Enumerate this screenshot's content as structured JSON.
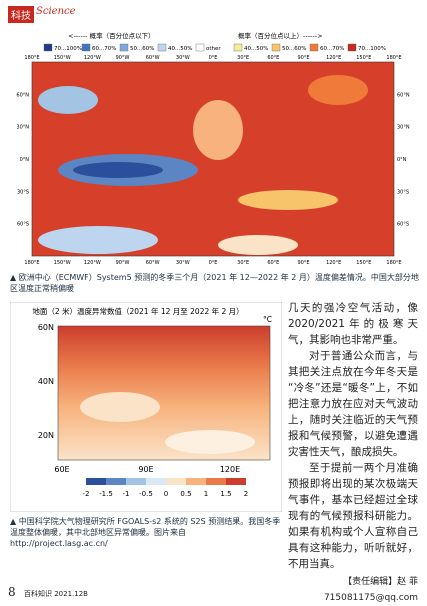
{
  "header": {
    "section": "科技",
    "section_en": "Science"
  },
  "figure1": {
    "legend_left": "<------ 概率（百分位点以下）",
    "legend_right": "概率（百分位点以上）------>",
    "legend_items": [
      "70...100%",
      "60...70%",
      "50...60%",
      "40...50%",
      "other",
      "40...50%",
      "50...60%",
      "60...70%",
      "70...100%"
    ],
    "lon_labels": [
      "180°E",
      "150°W",
      "120°W",
      "90°W",
      "60°W",
      "30°W",
      "0°E",
      "30°E",
      "60°E",
      "90°E",
      "120°E",
      "150°E",
      "180°E"
    ],
    "lat_labels": [
      "60°N",
      "30°N",
      "0°N",
      "30°S",
      "60°S"
    ],
    "caption": "▲ 欧洲中心（ECMWF）System5 预测的冬季三个月（2021 年 12—2022 年 2 月）温度偏差情况。中国大部分地区温度正常稍偏暖"
  },
  "figure2": {
    "title": "地面（2 米）温度异常数值（2021 年 12 月至 2022 年 2 月）",
    "unit": "°C",
    "lat_labels": [
      "60N",
      "40N",
      "20N"
    ],
    "lon_labels": [
      "60E",
      "90E",
      "120E"
    ],
    "colorbar_ticks": [
      "-2",
      "-1.5",
      "-1",
      "-0.5",
      "0",
      "0.5",
      "1",
      "1.5",
      "2"
    ],
    "caption": "▲ 中国科学院大气物理研究所 FGOALS-s2 系统的 S2S 预测结果。我国冬季温度整体偏暖，其中北部地区异常偏暖。图片来自 http://project.lasg.ac.cn/"
  },
  "article": {
    "paragraphs": [
      "几天的强冷空气活动，像2020/2021年的极寒天气，其影响也非常严重。",
      "对于普通公众而言，与其把关注点放在今年冬天是“冷冬”还是“暖冬”上，不如把注意力放在应对天气波动上，随时关注临近的天气预报和气候预警，以避免遭遇灾害性天气，酿成损失。",
      "至于提前一两个月准确预报即将出现的某次极端天气事件，基本已经超过全球现有的气候预报科研能力。如果有机构或个人宣称自己具有这种能力，听听就好，不用当真。"
    ],
    "editor": "【责任编辑】赵 菲",
    "email": "715081175@qq.com"
  },
  "footer": {
    "page": "8",
    "journal": "百科知识 2021.12B"
  }
}
